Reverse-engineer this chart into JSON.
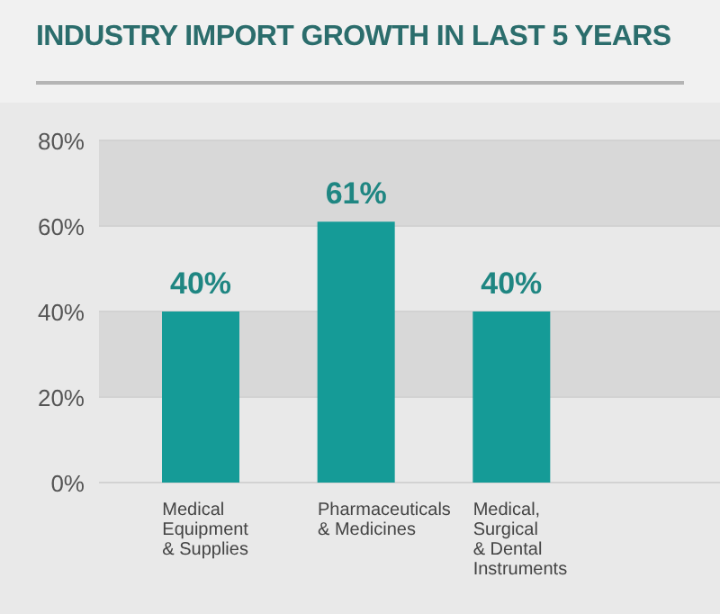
{
  "chart_data": {
    "type": "bar",
    "title": "INDUSTRY IMPORT GROWTH IN LAST 5 YEARS",
    "categories": [
      "Medical Equipment & Supplies",
      "Pharmaceuticals & Medicines",
      "Medical, Surgical & Dental Instruments"
    ],
    "values": [
      40,
      61,
      40
    ],
    "color": "#159b97",
    "value_labels": [
      "40%",
      "61%",
      "40%"
    ],
    "ylim": [
      0,
      80
    ],
    "yticks": [
      {
        "value": 0,
        "label": "0%"
      },
      {
        "value": 20,
        "label": "20%"
      },
      {
        "value": 40,
        "label": "40%"
      },
      {
        "value": 60,
        "label": "60%"
      },
      {
        "value": 80,
        "label": "80%"
      }
    ],
    "grid": "y"
  }
}
